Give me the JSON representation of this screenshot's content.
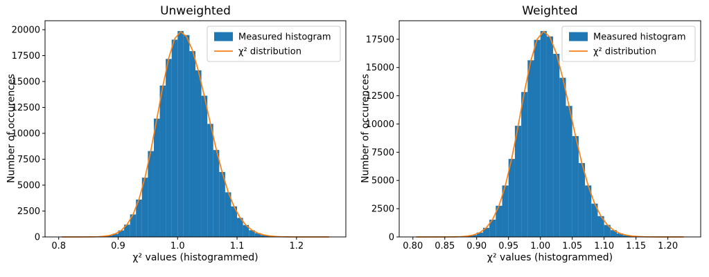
{
  "figure": {
    "background": "#ffffff"
  },
  "colors": {
    "histogram": "#1f77b4",
    "curve": "#ff7f0e",
    "axis": "#000000",
    "text": "#000000",
    "legend_border": "#cccccc",
    "legend_background": "#ffffff"
  },
  "chart_data": [
    {
      "type": "histogram+line",
      "title": "Unweighted",
      "xlabel": "χ² values (histogrammed)",
      "ylabel": "Number of occurences",
      "xlim": [
        0.777,
        1.283
      ],
      "ylim": [
        0,
        20866
      ],
      "grid": false,
      "legend_position": "upper right",
      "xticks": {
        "values": [
          0.8,
          0.9,
          1.0,
          1.1,
          1.2
        ],
        "labels": [
          "0.8",
          "0.9",
          "1.0",
          "1.1",
          "1.2"
        ]
      },
      "yticks": {
        "values": [
          0,
          2500,
          5000,
          7500,
          10000,
          12500,
          15000,
          17500,
          20000
        ],
        "labels": [
          "0",
          "2500",
          "5000",
          "7500",
          "10000",
          "12500",
          "15000",
          "17500",
          "20000"
        ]
      },
      "bins": {
        "start": 0.8,
        "width": 0.01
      },
      "counts": [
        0,
        0,
        1,
        2,
        4,
        9,
        23,
        55,
        140,
        295,
        628,
        1185,
        2174,
        3610,
        5720,
        8290,
        11420,
        14612,
        17180,
        19040,
        19872,
        19480,
        17930,
        16080,
        13630,
        10910,
        8390,
        6270,
        4310,
        2950,
        1840,
        1150,
        645,
        372,
        188,
        102,
        44,
        23,
        10,
        4,
        2,
        1,
        1,
        0,
        0,
        0
      ],
      "curve": {
        "x_start": 0.805,
        "dx": 0.01,
        "values": [
          0,
          0,
          1,
          2,
          5,
          10,
          22,
          57,
          135,
          301,
          620,
          1198,
          2158,
          3629,
          5693,
          8332,
          11379,
          14500,
          17240,
          19126,
          19800,
          19337,
          18014,
          16006,
          13567,
          10967,
          8457,
          6221,
          4364,
          2921,
          1863,
          1134,
          659,
          365,
          193,
          97,
          47,
          21,
          9,
          4,
          2,
          1,
          0,
          0,
          0,
          0
        ]
      },
      "legend": {
        "entries": [
          {
            "label": "Measured histogram",
            "kind": "patch"
          },
          {
            "label": "χ² distribution",
            "kind": "line"
          }
        ]
      }
    },
    {
      "type": "histogram+line",
      "title": "Weighted",
      "xlabel": "χ² values (histogrammed)",
      "ylabel": "Number of occurences",
      "xlim": [
        0.7785,
        1.2515
      ],
      "ylim": [
        0,
        19142
      ],
      "grid": false,
      "legend_position": "upper right",
      "xticks": {
        "values": [
          0.8,
          0.85,
          0.9,
          0.95,
          1.0,
          1.05,
          1.1,
          1.15,
          1.2
        ],
        "labels": [
          "0.80",
          "0.85",
          "0.90",
          "0.95",
          "1.00",
          "1.05",
          "1.10",
          "1.15",
          "1.20"
        ]
      },
      "yticks": {
        "values": [
          0,
          2500,
          5000,
          7500,
          10000,
          12500,
          15000,
          17500
        ],
        "labels": [
          "0",
          "2500",
          "5000",
          "7500",
          "10000",
          "12500",
          "15000",
          "17500"
        ]
      },
      "bins": {
        "start": 0.8,
        "width": 0.01
      },
      "counts": [
        0,
        0,
        0,
        0,
        1,
        3,
        9,
        28,
        68,
        175,
        390,
        810,
        1528,
        2762,
        4555,
        6905,
        9840,
        12830,
        15640,
        17450,
        18230,
        17750,
        16210,
        14090,
        11600,
        8930,
        6540,
        4560,
        2950,
        1845,
        1062,
        598,
        312,
        148,
        72,
        29,
        14,
        6,
        2,
        1,
        0,
        0,
        0
      ],
      "curve": {
        "x_start": 0.805,
        "dx": 0.01,
        "values": [
          0,
          0,
          0,
          0,
          1,
          3,
          9,
          27,
          70,
          171,
          384,
          799,
          1541,
          2748,
          4539,
          6938,
          9817,
          12860,
          15597,
          17512,
          18200,
          17692,
          16249,
          14103,
          11564,
          8960,
          6559,
          4539,
          2967,
          1833,
          1070,
          590,
          308,
          151,
          70,
          31,
          13,
          5,
          2,
          1,
          0,
          0,
          0
        ]
      },
      "legend": {
        "entries": [
          {
            "label": "Measured histogram",
            "kind": "patch"
          },
          {
            "label": "χ² distribution",
            "kind": "line"
          }
        ]
      }
    }
  ]
}
